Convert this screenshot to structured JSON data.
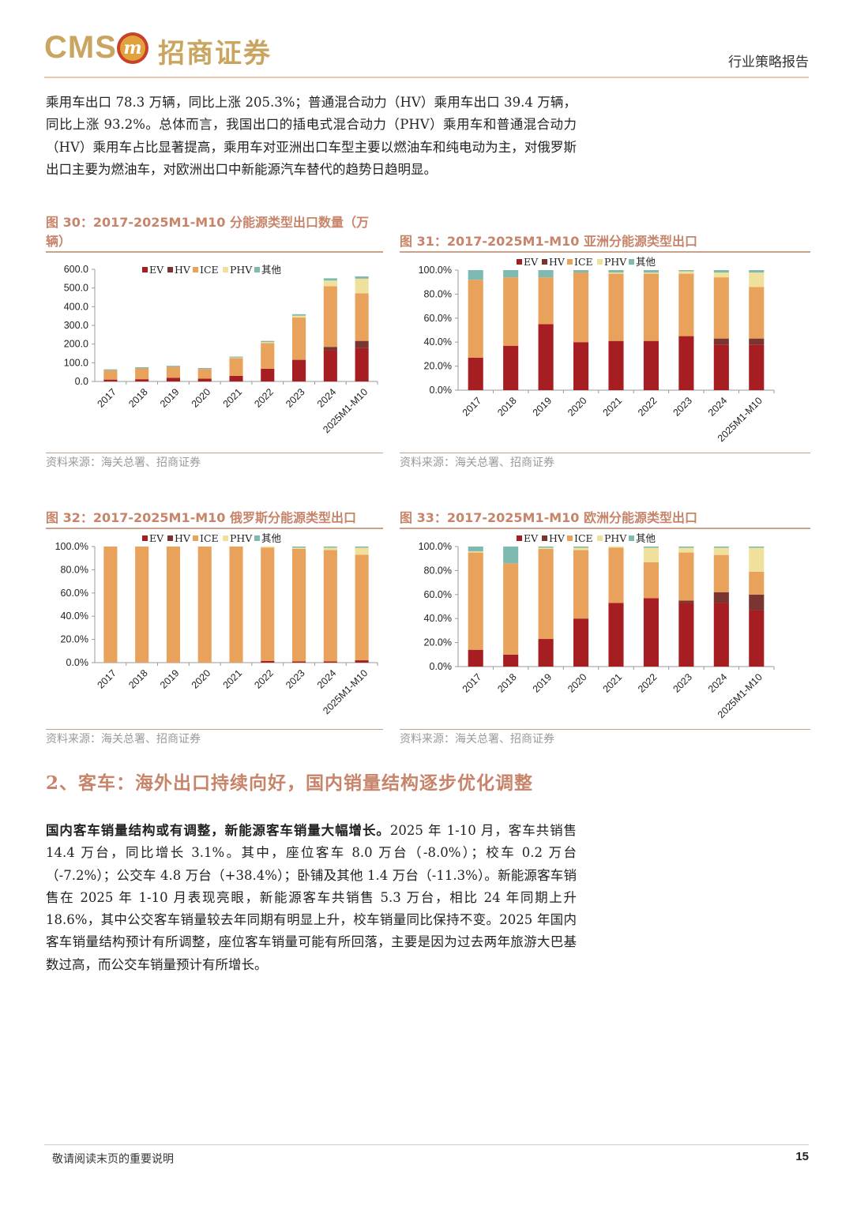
{
  "header": {
    "logo_en": "CMS",
    "logo_badge": "m",
    "logo_cn": "招商证券",
    "report_type": "行业策略报告"
  },
  "intro": {
    "text": "乘用车出口 78.3 万辆，同比上涨 205.3%；普通混合动力（HV）乘用车出口 39.4 万辆，同比上涨 93.2%。总体而言，我国出口的插电式混合动力（PHV）乘用车和普通混合动力（HV）乘用车占比显著提高，乘用车对亚洲出口车型主要以燃油车和纯电动为主，对俄罗斯出口主要为燃油车，对欧洲出口中新能源汽车替代的趋势日趋明显。"
  },
  "colors": {
    "EV": "#a61e22",
    "HV": "#7a3530",
    "ICE": "#e9a25c",
    "PHV": "#efe09c",
    "other": "#7fbab2",
    "accent": "#c8846a"
  },
  "figures": {
    "fig30": {
      "title_line1": "图 30：2017-2025M1-M10 分能源类型出口数量（万",
      "title_line2": "辆）",
      "source": "资料来源：海关总署、招商证券"
    },
    "fig31": {
      "title": "图 31：2017-2025M1-M10 亚洲分能源类型出口",
      "source": "资料来源：海关总署、招商证券"
    },
    "fig32": {
      "title": "图 32：2017-2025M1-M10 俄罗斯分能源类型出口",
      "source": "资料来源：海关总署、招商证券"
    },
    "fig33": {
      "title": "图 33：2017-2025M1-M10 欧洲分能源类型出口",
      "source": "资料来源：海关总署、招商证券"
    }
  },
  "chart_data": [
    {
      "id": "fig30",
      "type": "bar",
      "stacked": true,
      "title": "2017-2025M1-M10 分能源类型出口数量（万辆）",
      "categories": [
        "2017",
        "2018",
        "2019",
        "2020",
        "2021",
        "2022",
        "2023",
        "2024",
        "2025M1-M10"
      ],
      "ylim": [
        0,
        600
      ],
      "yticks": [
        "0.0",
        "100.0",
        "200.0",
        "300.0",
        "400.0",
        "500.0",
        "600.0"
      ],
      "legend_position": "top",
      "series": [
        {
          "name": "EV",
          "values": [
            10,
            12,
            20,
            15,
            30,
            68,
            115,
            165,
            178
          ]
        },
        {
          "name": "HV",
          "values": [
            0,
            0,
            0,
            0,
            0,
            0,
            2,
            20,
            39
          ]
        },
        {
          "name": "ICE",
          "values": [
            50,
            58,
            58,
            52,
            95,
            137,
            225,
            325,
            255
          ]
        },
        {
          "name": "PHV",
          "values": [
            0,
            0,
            0,
            0,
            3,
            6,
            10,
            30,
            78
          ]
        },
        {
          "name": "其他",
          "values": [
            5,
            6,
            6,
            5,
            5,
            6,
            8,
            12,
            12
          ]
        }
      ]
    },
    {
      "id": "fig31",
      "type": "bar",
      "stacked": true,
      "title": "2017-2025M1-M10 亚洲分能源类型出口",
      "categories": [
        "2017",
        "2018",
        "2019",
        "2020",
        "2021",
        "2022",
        "2023",
        "2024",
        "2025M1-M10"
      ],
      "ylim": [
        0,
        100
      ],
      "yticks": [
        "0.0%",
        "20.0%",
        "40.0%",
        "60.0%",
        "80.0%",
        "100.0%"
      ],
      "legend_position": "top",
      "series": [
        {
          "name": "EV",
          "values": [
            27,
            37,
            55,
            40,
            41,
            41,
            45,
            38,
            38
          ]
        },
        {
          "name": "HV",
          "values": [
            0,
            0,
            0,
            0,
            0,
            0,
            0,
            5,
            5
          ]
        },
        {
          "name": "ICE",
          "values": [
            65,
            57,
            39,
            58,
            56,
            56,
            52,
            51,
            43
          ]
        },
        {
          "name": "PHV",
          "values": [
            0,
            0,
            0,
            0,
            1,
            1,
            2,
            4,
            12
          ]
        },
        {
          "name": "其他",
          "values": [
            8,
            6,
            6,
            2,
            2,
            2,
            1,
            2,
            2
          ]
        }
      ]
    },
    {
      "id": "fig32",
      "type": "bar",
      "stacked": true,
      "title": "2017-2025M1-M10 俄罗斯分能源类型出口",
      "categories": [
        "2017",
        "2018",
        "2019",
        "2020",
        "2021",
        "2022",
        "2023",
        "2024",
        "2025M1-M10"
      ],
      "ylim": [
        0,
        100
      ],
      "yticks": [
        "0.0%",
        "20.0%",
        "40.0%",
        "60.0%",
        "80.0%",
        "100.0%"
      ],
      "legend_position": "top",
      "series": [
        {
          "name": "EV",
          "values": [
            0,
            0,
            0,
            0,
            0,
            1.5,
            1,
            1,
            2
          ]
        },
        {
          "name": "HV",
          "values": [
            0,
            0,
            0,
            0,
            0,
            0,
            0,
            0,
            0
          ]
        },
        {
          "name": "ICE",
          "values": [
            100,
            100,
            100,
            100,
            100,
            97.5,
            97,
            96,
            91
          ]
        },
        {
          "name": "PHV",
          "values": [
            0,
            0,
            0,
            0,
            0,
            1,
            1,
            2,
            6
          ]
        },
        {
          "name": "其他",
          "values": [
            0,
            0,
            0,
            0,
            0,
            0,
            1,
            1,
            1
          ]
        }
      ]
    },
    {
      "id": "fig33",
      "type": "bar",
      "stacked": true,
      "title": "2017-2025M1-M10 欧洲分能源类型出口",
      "categories": [
        "2017",
        "2018",
        "2019",
        "2020",
        "2021",
        "2022",
        "2023",
        "2024",
        "2025M1-M10"
      ],
      "ylim": [
        0,
        100
      ],
      "yticks": [
        "0.0%",
        "20.0%",
        "40.0%",
        "60.0%",
        "80.0%",
        "100.0%"
      ],
      "legend_position": "top",
      "series": [
        {
          "name": "EV",
          "values": [
            14,
            10,
            23,
            40,
            53,
            57,
            53,
            53,
            47
          ]
        },
        {
          "name": "HV",
          "values": [
            0,
            0,
            0,
            0,
            0,
            0,
            2,
            9,
            13
          ]
        },
        {
          "name": "ICE",
          "values": [
            81,
            76,
            75,
            57,
            46,
            30,
            40,
            31,
            19
          ]
        },
        {
          "name": "PHV",
          "values": [
            1,
            0,
            1,
            2,
            1,
            12,
            4,
            6,
            20
          ]
        },
        {
          "name": "其他",
          "values": [
            4,
            14,
            1,
            1,
            0,
            1,
            1,
            1,
            1
          ]
        }
      ]
    }
  ],
  "section": {
    "title": "2、客车：海外出口持续向好，国内销量结构逐步优化调整"
  },
  "body": {
    "lead": "国内客车销量结构或有调整，新能源客车销量大幅增长。",
    "text": "2025 年 1-10 月，客车共销售 14.4 万台，同比增长 3.1%。其中，座位客车 8.0 万台（-8.0%）；校车 0.2 万台（-7.2%）；公交车 4.8 万台（+38.4%）；卧铺及其他 1.4 万台（-11.3%）。新能源客车销售在 2025 年 1-10 月表现亮眼，新能源客车共销售 5.3 万台，相比 24 年同期上升 18.6%，其中公交客车销量较去年同期有明显上升，校车销量同比保持不变。2025 年国内客车销量结构预计有所调整，座位客车销量可能有所回落，主要是因为过去两年旅游大巴基数过高，而公交车销量预计有所增长。"
  },
  "footer": {
    "notice": "敬请阅读末页的重要说明",
    "page": "15"
  }
}
